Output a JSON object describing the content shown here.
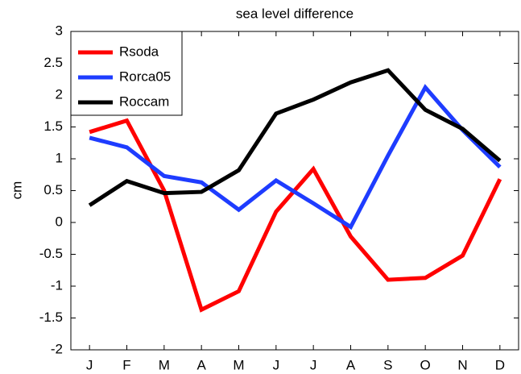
{
  "chart_data": {
    "type": "line",
    "title": "sea level difference",
    "ylabel": "cm",
    "categories": [
      "J",
      "F",
      "M",
      "A",
      "M",
      "J",
      "J",
      "A",
      "S",
      "O",
      "N",
      "D"
    ],
    "series": [
      {
        "name": "Rsoda",
        "color": "#ff0000",
        "values": [
          1.42,
          1.6,
          0.5,
          -1.37,
          -1.08,
          0.17,
          0.84,
          -0.22,
          -0.9,
          -0.87,
          -0.52,
          0.68
        ]
      },
      {
        "name": "Rorca05",
        "color": "#1e3cff",
        "values": [
          1.33,
          1.18,
          0.73,
          0.63,
          0.2,
          0.66,
          0.3,
          -0.07,
          1.05,
          2.12,
          1.45,
          0.87
        ]
      },
      {
        "name": "Roccam",
        "color": "#000000",
        "values": [
          0.27,
          0.65,
          0.46,
          0.48,
          0.82,
          1.71,
          1.93,
          2.2,
          2.39,
          1.77,
          1.47,
          0.97
        ]
      }
    ],
    "ylim": [
      -2,
      3
    ],
    "yticks": [
      -2,
      -1.5,
      -1,
      -0.5,
      0,
      0.5,
      1,
      1.5,
      2,
      2.5,
      3
    ],
    "legend": "upper-left"
  }
}
